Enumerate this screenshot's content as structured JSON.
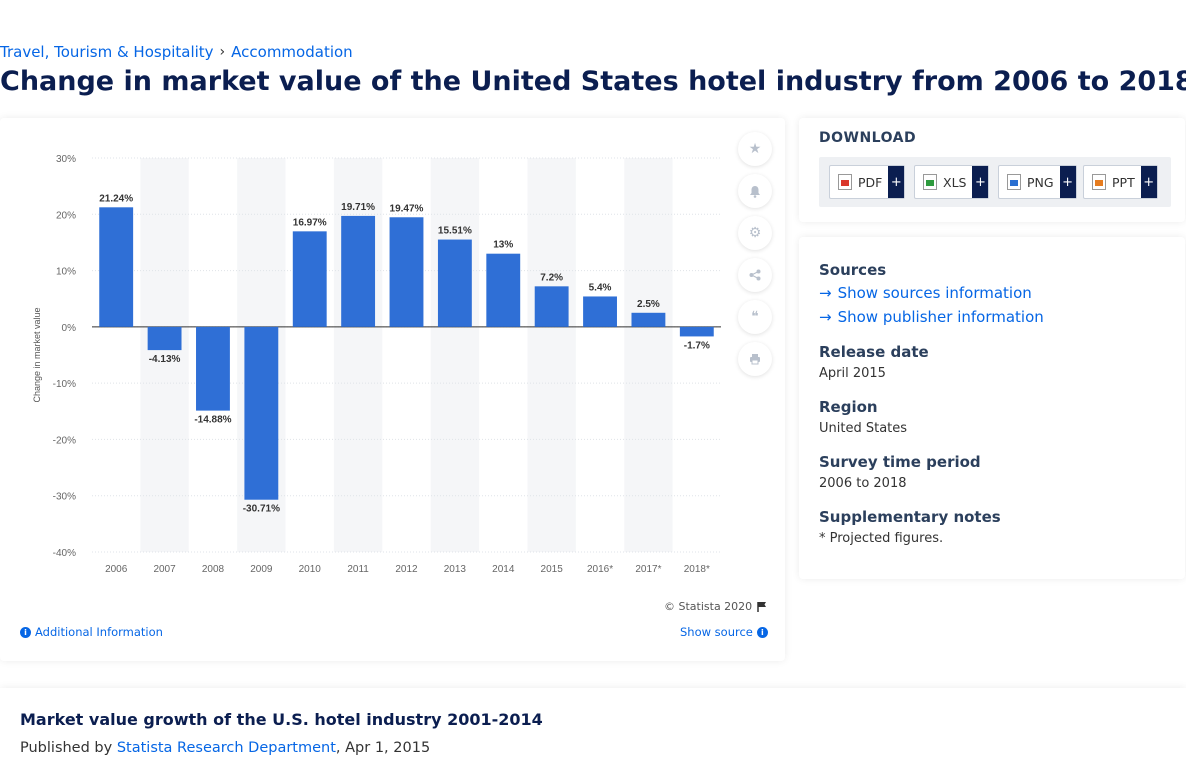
{
  "breadcrumb": {
    "item1": "Travel, Tourism & Hospitality",
    "sep": "›",
    "item2": "Accommodation"
  },
  "page_title": "Change in market value of the United States hotel industry from 2006 to 2018",
  "chart_data": {
    "type": "bar",
    "categories": [
      "2006",
      "2007",
      "2008",
      "2009",
      "2010",
      "2011",
      "2012",
      "2013",
      "2014",
      "2015",
      "2016*",
      "2017*",
      "2018*"
    ],
    "values": [
      21.24,
      -4.13,
      -14.88,
      -30.71,
      16.97,
      19.71,
      19.47,
      15.51,
      13,
      7.2,
      5.4,
      2.5,
      -1.7
    ],
    "data_labels": [
      "21.24%",
      "-4.13%",
      "-14.88%",
      "-30.71%",
      "16.97%",
      "19.71%",
      "19.47%",
      "15.51%",
      "13%",
      "7.2%",
      "5.4%",
      "2.5%",
      "-1.7%"
    ],
    "yticks": [
      "30%",
      "20%",
      "10%",
      "0%",
      "-10%",
      "-20%",
      "-30%",
      "-40%"
    ],
    "ylim": [
      -40,
      30
    ],
    "xlabel": "",
    "ylabel": "Change in market value",
    "grid": true,
    "bar_color": "#2f6fd6"
  },
  "chart_footer": {
    "copyright": "© Statista 2020",
    "additional_info": "Additional Information",
    "show_source": "Show source"
  },
  "tools": [
    "star-icon",
    "bell-icon",
    "gear-icon",
    "share-icon",
    "quote-icon",
    "print-icon"
  ],
  "download": {
    "title": "DOWNLOAD",
    "buttons": [
      {
        "label": "PDF",
        "plus": "+"
      },
      {
        "label": "XLS",
        "plus": "+"
      },
      {
        "label": "PNG",
        "plus": "+"
      },
      {
        "label": "PPT",
        "plus": "+"
      }
    ]
  },
  "info": {
    "sources_label": "Sources",
    "sources_link": "Show sources information",
    "publisher_link": "Show publisher information",
    "release_label": "Release date",
    "release_value": "April 2015",
    "region_label": "Region",
    "region_value": "United States",
    "survey_label": "Survey time period",
    "survey_value": "2006 to 2018",
    "notes_label": "Supplementary notes",
    "notes_value": "* Projected figures."
  },
  "related": {
    "title": "Market value growth of the U.S. hotel industry 2001-2014",
    "published_by": "Published by",
    "publisher": "Statista Research Department",
    "date": ", Apr 1, 2015"
  }
}
